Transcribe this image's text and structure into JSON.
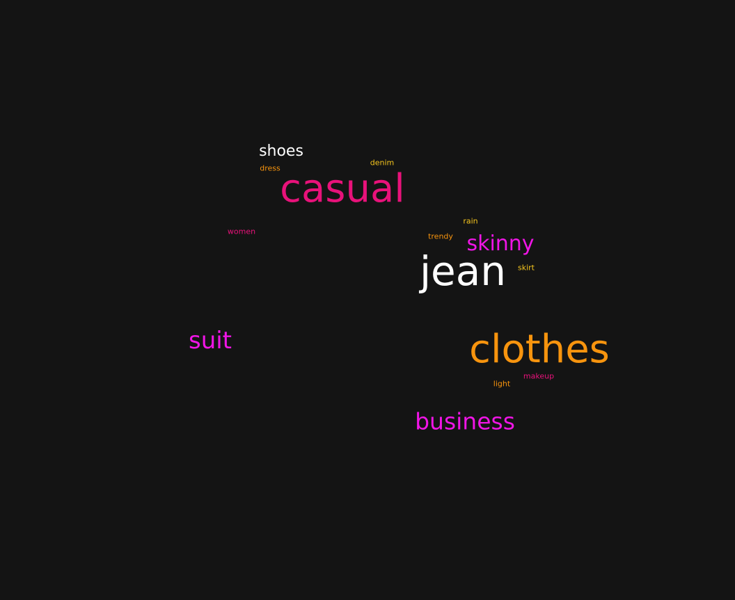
{
  "background": "#141414",
  "colors": {
    "white": "#ffffff",
    "pink": "#e8127a",
    "magenta": "#f015e6",
    "orange": "#f7940e",
    "yellow": "#f5c51e"
  },
  "words": {
    "shoes": {
      "text": "shoes",
      "color": "#ffffff"
    },
    "dress": {
      "text": "dress",
      "color": "#f7940e"
    },
    "denim": {
      "text": "denim",
      "color": "#f5c51e"
    },
    "casual": {
      "text": "casual",
      "color": "#e8127a"
    },
    "rain": {
      "text": "rain",
      "color": "#f5c51e"
    },
    "women": {
      "text": "women",
      "color": "#e8127a"
    },
    "trendy": {
      "text": "trendy",
      "color": "#f7940e"
    },
    "skinny": {
      "text": "skinny",
      "color": "#f015e6"
    },
    "skirt": {
      "text": "skirt",
      "color": "#f5c51e"
    },
    "jean": {
      "text": "jean",
      "color": "#ffffff"
    },
    "suit": {
      "text": "suit",
      "color": "#f015e6"
    },
    "clothes": {
      "text": "clothes",
      "color": "#f7940e"
    },
    "makeup": {
      "text": "makeup",
      "color": "#e8127a"
    },
    "light": {
      "text": "light",
      "color": "#f7940e"
    },
    "business": {
      "text": "business",
      "color": "#f015e6"
    }
  }
}
